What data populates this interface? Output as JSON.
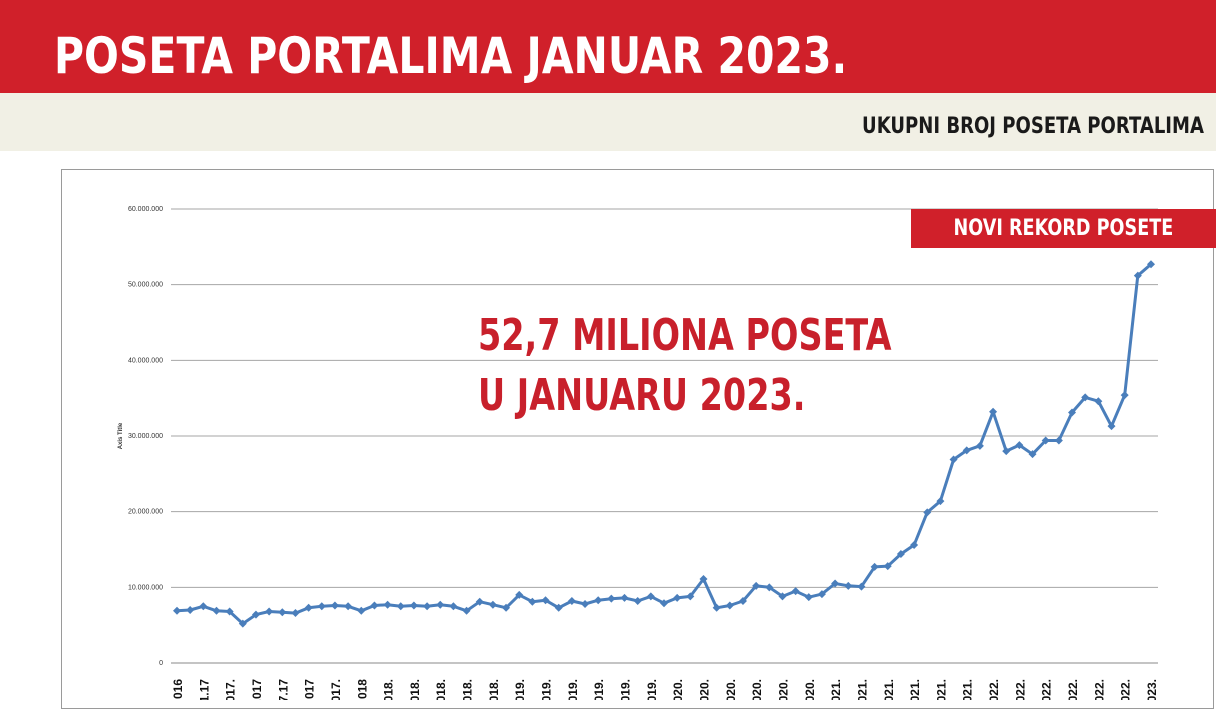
{
  "header": {
    "title": "POSETA PORTALIMA JANUAR 2023.",
    "subtitle": "UKUPNI BROJ POSETA PORTALIMA"
  },
  "badge": {
    "label": "NOVI REKORD POSETE"
  },
  "annotation": {
    "line1": "52,7 MILIONA POSETA",
    "line2": "U JANUARU 2023."
  },
  "colors": {
    "brand_red": "#d0202a",
    "series_blue": "#4a7ebb",
    "band_cream": "#f1f0e5"
  },
  "chart_data": {
    "type": "line",
    "ylabel": "Axis Title",
    "ylim": [
      0,
      60000000
    ],
    "yticks": [
      0,
      10000000,
      20000000,
      30000000,
      40000000,
      50000000,
      60000000
    ],
    "ytick_labels": [
      "0",
      "10.000.000",
      "20.000.000",
      "30.000.000",
      "40.000.000",
      "50.000.000",
      "60.000.000"
    ],
    "grid": true,
    "legend": "none",
    "x_tick_labels": [
      "016",
      "1.17",
      "017.",
      ".017",
      "7.17",
      "017",
      "017.",
      "018",
      "018.",
      "018.",
      "018.",
      "018.",
      "018.",
      "019.",
      "019.",
      "019.",
      "019.",
      "019.",
      "019.",
      "020.",
      "020.",
      "020.",
      "020.",
      "020.",
      "020.",
      "021.",
      "021.",
      "021.",
      "021.",
      "021.",
      "021.",
      "022.",
      "022.",
      "022.",
      "022.",
      "022.",
      "022.",
      "023."
    ],
    "series": [
      {
        "values": [
          6900000,
          7000000,
          7500000,
          6900000,
          6800000,
          5200000,
          6400000,
          6800000,
          6700000,
          6600000,
          7300000,
          7500000,
          7600000,
          7500000,
          6900000,
          7600000,
          7700000,
          7500000,
          7600000,
          7500000,
          7700000,
          7500000,
          6900000,
          8100000,
          7700000,
          7300000,
          9000000,
          8100000,
          8300000,
          7300000,
          8200000,
          7800000,
          8300000,
          8500000,
          8600000,
          8200000,
          8800000,
          7900000,
          8600000,
          8800000,
          11100000,
          7300000,
          7600000,
          8200000,
          10200000,
          10000000,
          8800000,
          9500000,
          8700000,
          9100000,
          10500000,
          10200000,
          10100000,
          12700000,
          12800000,
          14400000,
          15600000,
          19900000,
          21400000,
          26900000,
          28100000,
          28700000,
          33200000,
          28000000,
          28800000,
          27600000,
          29400000,
          29400000,
          33100000,
          35100000,
          34600000,
          31300000,
          35400000,
          51200000,
          52700000
        ]
      }
    ]
  }
}
